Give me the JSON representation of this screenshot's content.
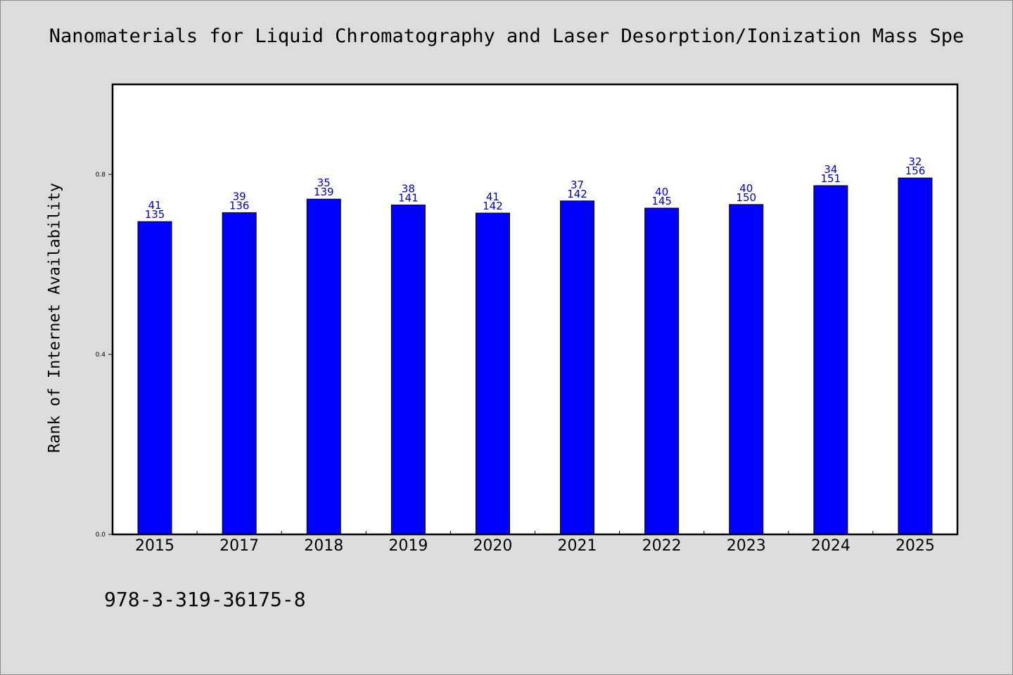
{
  "chart_data": {
    "type": "bar",
    "title": "Nanomaterials for Liquid Chromatography and Laser Desorption/Ionization Mass Spe",
    "ylabel": "Rank of Internet Availability",
    "xlabel": "",
    "categories": [
      "2015",
      "2017",
      "2018",
      "2019",
      "2020",
      "2021",
      "2022",
      "2023",
      "2024",
      "2025"
    ],
    "values": [
      0.695,
      0.715,
      0.745,
      0.732,
      0.714,
      0.741,
      0.725,
      0.733,
      0.775,
      0.792
    ],
    "labels_top": [
      "41",
      "39",
      "35",
      "38",
      "41",
      "37",
      "40",
      "40",
      "34",
      "32"
    ],
    "labels_bottom": [
      "135",
      "136",
      "139",
      "141",
      "142",
      "142",
      "145",
      "150",
      "151",
      "156"
    ],
    "ylim": [
      0,
      1.0
    ],
    "yticks": [
      "0.0",
      "0.4",
      "0.8"
    ],
    "ytick_values": [
      0.0,
      0.4,
      0.8
    ],
    "bar_color": "#0000ff",
    "label_color": "#0000cc",
    "grid": false,
    "legend": "none"
  },
  "footer": {
    "isbn": "978-3-319-36175-8"
  }
}
